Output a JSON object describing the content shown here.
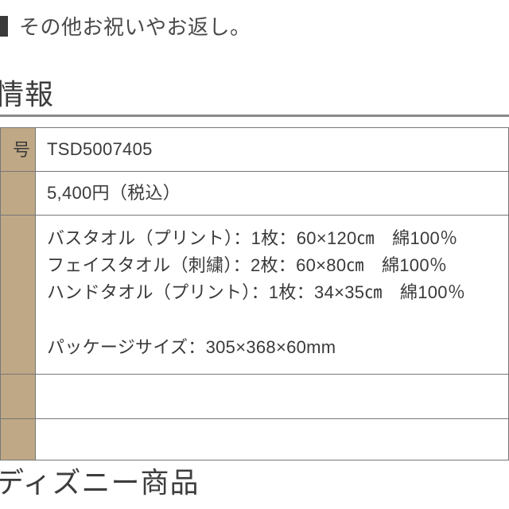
{
  "top_bullet_text": "その他お祝いやお返し。",
  "section_heading": "情報",
  "table": {
    "background_label": "#bfa885",
    "border_color": "#777777",
    "rows": [
      {
        "label": "号",
        "value": "TSD5007405"
      },
      {
        "label": "",
        "value": "5,400円（税込）"
      },
      {
        "label": "",
        "line1": "バスタオル（プリント）：1枚：60×120㎝　綿100％",
        "line2": "フェイスタオル（刺繍）：2枚：60×80㎝　綿100％",
        "line3": "ハンドタオル（プリント）：1枚：34×35㎝　綿100％",
        "line5": "パッケージサイズ：305×368×60mm"
      },
      {
        "label": "",
        "value": ""
      },
      {
        "label": "",
        "value": ""
      }
    ]
  },
  "bottom_heading": "ディズニー商品"
}
